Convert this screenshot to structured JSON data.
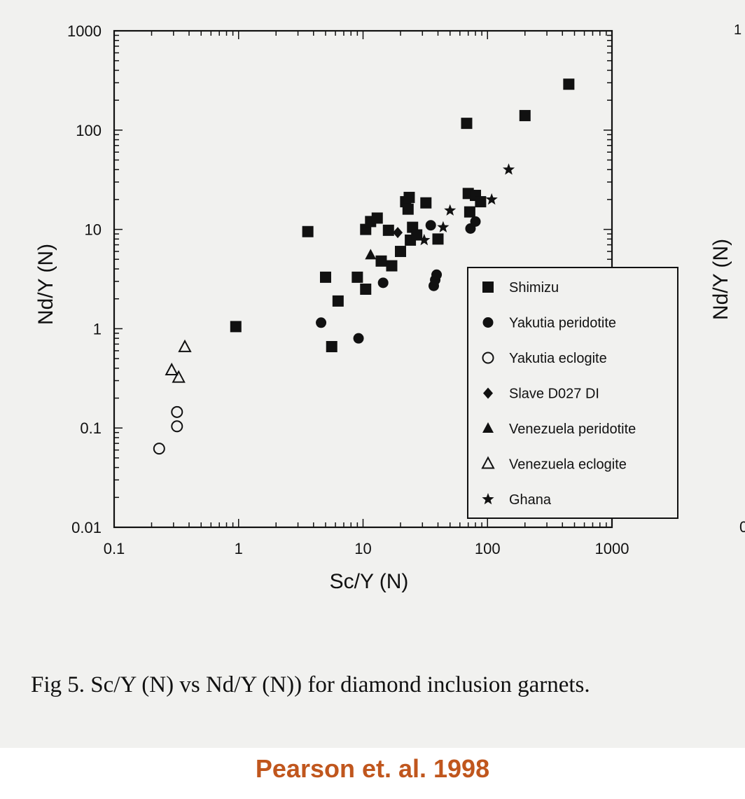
{
  "chart_data": {
    "type": "scatter",
    "title": "",
    "xlabel": "Sc/Y (N)",
    "ylabel": "Nd/Y (N)",
    "xscale": "log",
    "yscale": "log",
    "xlim": [
      0.1,
      1000
    ],
    "ylim": [
      0.01,
      1000
    ],
    "x_ticks": [
      "0.1",
      "1",
      "10",
      "100",
      "1000"
    ],
    "y_ticks": [
      "0.01",
      "0.1",
      "1",
      "10",
      "100",
      "1000"
    ],
    "grid": false,
    "legend_position": "right-middle",
    "series": [
      {
        "name": "Shimizu",
        "marker": "square-filled",
        "points": [
          [
            0.95,
            1.05
          ],
          [
            3.6,
            9.5
          ],
          [
            5.0,
            3.3
          ],
          [
            5.6,
            0.66
          ],
          [
            6.3,
            1.9
          ],
          [
            9.0,
            3.3
          ],
          [
            10.5,
            2.5
          ],
          [
            10.5,
            10
          ],
          [
            11.5,
            12
          ],
          [
            13,
            13
          ],
          [
            14,
            4.8
          ],
          [
            16,
            9.8
          ],
          [
            17,
            4.3
          ],
          [
            20,
            6
          ],
          [
            22,
            19
          ],
          [
            23,
            16
          ],
          [
            23.5,
            21
          ],
          [
            24,
            7.8
          ],
          [
            25,
            10.5
          ],
          [
            27,
            8.8
          ],
          [
            32,
            18.5
          ],
          [
            40,
            8
          ],
          [
            68,
            117
          ],
          [
            70,
            23
          ],
          [
            72,
            15
          ],
          [
            80,
            22
          ],
          [
            88,
            19
          ],
          [
            200,
            140
          ],
          [
            450,
            290
          ]
        ]
      },
      {
        "name": "Yakutia peridotite",
        "marker": "circle-filled",
        "points": [
          [
            4.6,
            1.15
          ],
          [
            9.2,
            0.8
          ],
          [
            14.5,
            2.9
          ],
          [
            35,
            11
          ],
          [
            37,
            2.7
          ],
          [
            38,
            3.1
          ],
          [
            39,
            3.5
          ],
          [
            73,
            10.2
          ],
          [
            80,
            12
          ]
        ]
      },
      {
        "name": "Yakutia eclogite",
        "marker": "circle-open",
        "points": [
          [
            0.23,
            0.062
          ],
          [
            0.32,
            0.104
          ],
          [
            0.32,
            0.145
          ]
        ]
      },
      {
        "name": "Slave D027 DI",
        "marker": "diamond-filled",
        "points": [
          [
            19,
            9.3
          ]
        ]
      },
      {
        "name": "Venezuela peridotite",
        "marker": "triangle-filled",
        "points": [
          [
            11.5,
            5.5
          ]
        ]
      },
      {
        "name": "Venezuela eclogite",
        "marker": "triangle-open",
        "points": [
          [
            0.29,
            0.38
          ],
          [
            0.33,
            0.32
          ],
          [
            0.37,
            0.65
          ]
        ]
      },
      {
        "name": "Ghana",
        "marker": "star-filled",
        "points": [
          [
            31,
            7.8
          ],
          [
            44,
            10.5
          ],
          [
            50,
            15.5
          ],
          [
            108,
            20
          ],
          [
            148,
            40
          ]
        ]
      }
    ]
  },
  "caption": "Fig 5.   Sc/Y (N) vs Nd/Y (N)) for diamond inclusion garnets.",
  "citation": "Pearson et. al. 1998",
  "right_edge": {
    "top_mark": "1",
    "ylabel_fragment": "Nd/Y (N)",
    "bottom_mark": "0"
  },
  "colors": {
    "marker": "#111111",
    "background": "#f1f1ef",
    "citation": "#c0561d"
  }
}
